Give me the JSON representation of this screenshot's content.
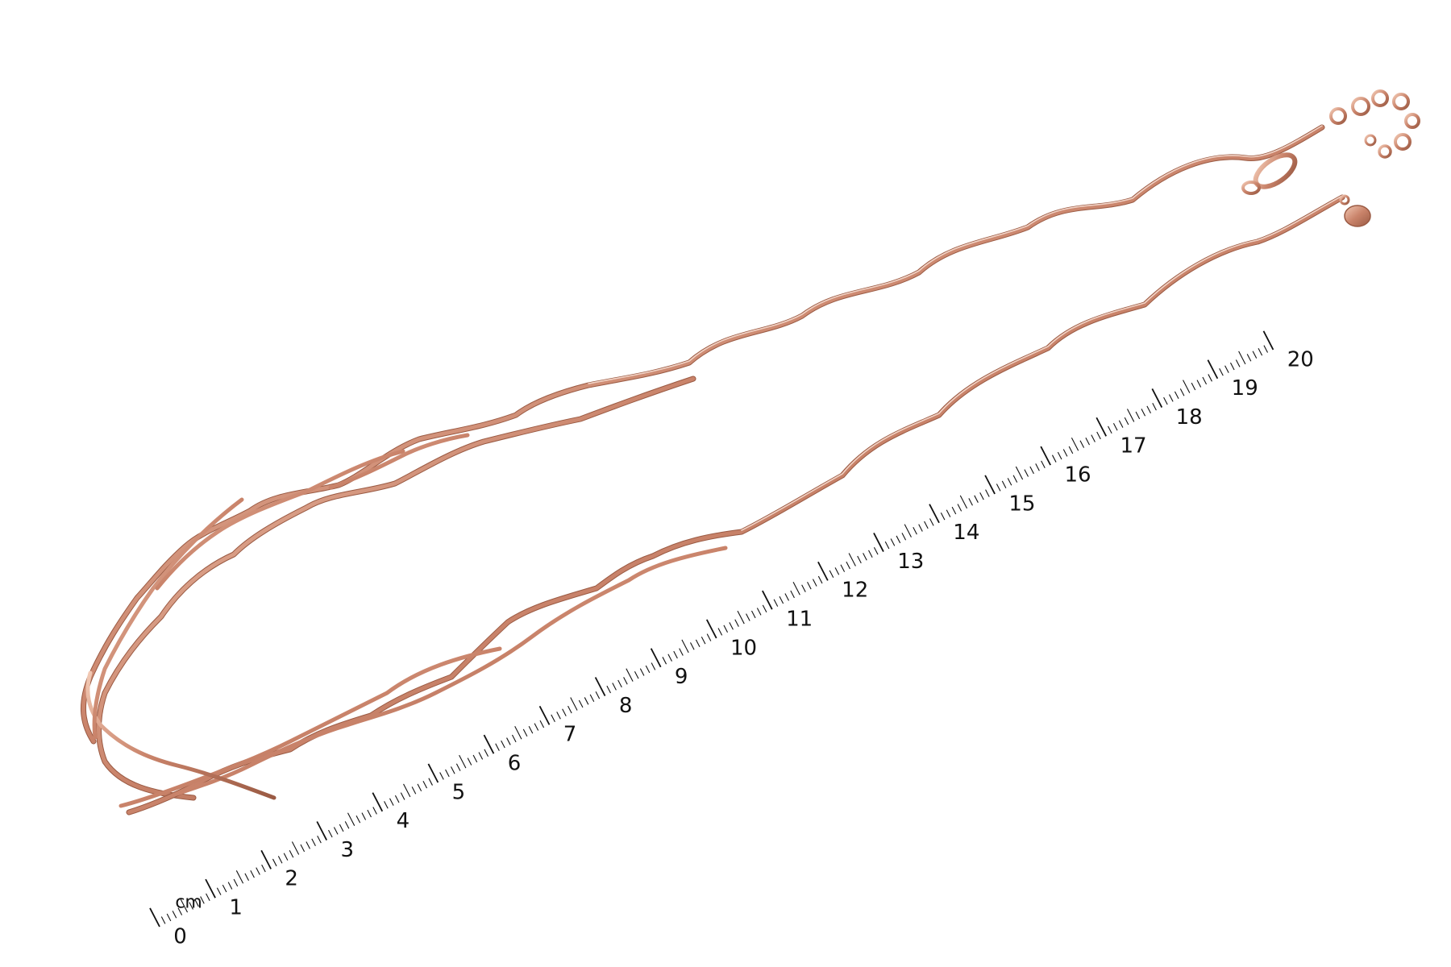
{
  "ruler": {
    "unit_label": "cm",
    "labels": [
      "0",
      "1",
      "2",
      "3",
      "4",
      "5",
      "6",
      "7",
      "8",
      "9",
      "10",
      "11",
      "12",
      "13",
      "14",
      "15",
      "16",
      "17",
      "18",
      "19",
      "20"
    ]
  },
  "colors": {
    "background": "#ffffff",
    "metal_base": "#c9836a",
    "metal_light": "#f4d2c0",
    "metal_dark": "#8f4e38",
    "ruler_ink": "#111111"
  }
}
